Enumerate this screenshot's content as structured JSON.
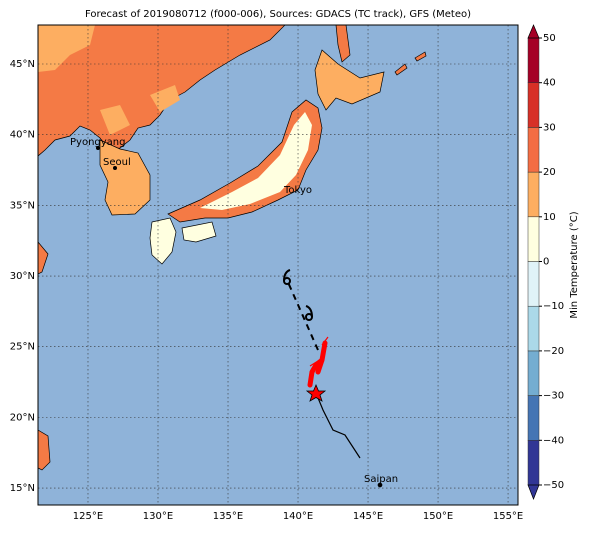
{
  "title": "Forecast of 2019080712 (f000-006), Sources: GDACS (TC track), GFS (Meteo)",
  "map": {
    "lonlim": [
      121.43,
      155.71
    ],
    "latlim": [
      13.8,
      47.76
    ],
    "lonticks": [
      {
        "value": 125,
        "label": "125°E"
      },
      {
        "value": 130,
        "label": "130°E"
      },
      {
        "value": 135,
        "label": "135°E"
      },
      {
        "value": 140,
        "label": "140°E"
      },
      {
        "value": 145,
        "label": "145°E"
      },
      {
        "value": 150,
        "label": "150°E"
      },
      {
        "value": 155,
        "label": "155°E"
      }
    ],
    "latticks": [
      {
        "value": 15,
        "label": "15°N"
      },
      {
        "value": 20,
        "label": "20°N"
      },
      {
        "value": 25,
        "label": "25°N"
      },
      {
        "value": 30,
        "label": "30°N"
      },
      {
        "value": 35,
        "label": "35°N"
      },
      {
        "value": 40,
        "label": "40°N"
      },
      {
        "value": 45,
        "label": "45°N"
      }
    ],
    "cities": [
      "Pyongyang",
      "Seoul",
      "Tokyo",
      "Saipan"
    ]
  },
  "colorbar": {
    "label": "Min Temperature (°C)",
    "lim": [
      -50,
      50
    ],
    "ticks": [
      {
        "value": -50,
        "label": "−50"
      },
      {
        "value": -40,
        "label": "−40"
      },
      {
        "value": -30,
        "label": "−30"
      },
      {
        "value": -20,
        "label": "−20"
      },
      {
        "value": -10,
        "label": "−10"
      },
      0,
      10,
      20,
      30,
      40,
      50
    ],
    "colors": [
      "#313695",
      "#4575b4",
      "#74add1",
      "#abd9e9",
      "#e0f3f8",
      "#ffffe0",
      "#fdae61",
      "#f46d43",
      "#d73027",
      "#a50026"
    ]
  }
}
